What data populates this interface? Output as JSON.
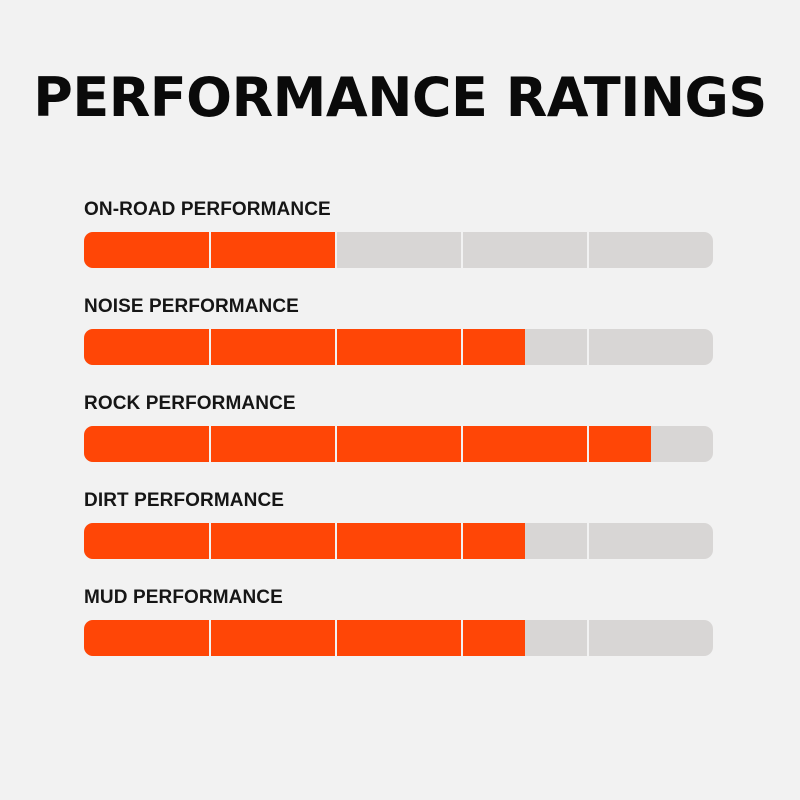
{
  "title": "PERFORMANCE RATINGS",
  "colors": {
    "fill": "#ff4606",
    "track": "#d8d6d5",
    "background": "#f2f2f2"
  },
  "segments": 5,
  "ratings": [
    {
      "label": "ON-ROAD PERFORMANCE",
      "value": 2.0
    },
    {
      "label": "NOISE PERFORMANCE",
      "value": 3.5
    },
    {
      "label": "ROCK PERFORMANCE",
      "value": 4.5
    },
    {
      "label": "DIRT PERFORMANCE",
      "value": 3.5
    },
    {
      "label": "MUD PERFORMANCE",
      "value": 3.5
    }
  ]
}
